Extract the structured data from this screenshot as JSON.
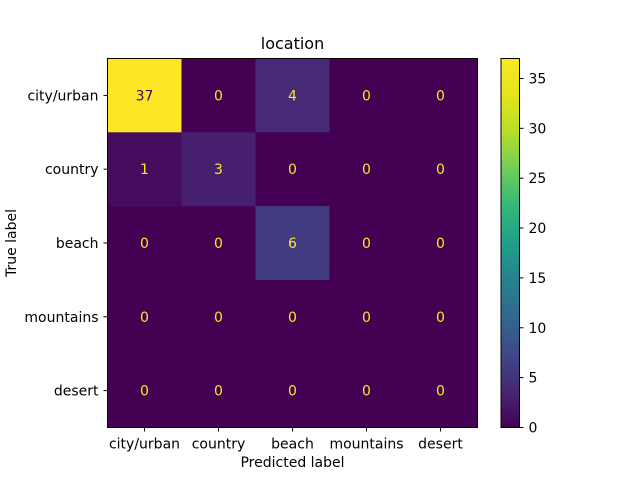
{
  "chart_data": {
    "type": "heatmap",
    "title": "location",
    "xlabel": "Predicted label",
    "ylabel": "True label",
    "x_categories": [
      "city/urban",
      "country",
      "beach",
      "mountains",
      "desert"
    ],
    "y_categories": [
      "city/urban",
      "country",
      "beach",
      "mountains",
      "desert"
    ],
    "matrix": [
      [
        37,
        0,
        4,
        0,
        0
      ],
      [
        1,
        3,
        0,
        0,
        0
      ],
      [
        0,
        0,
        6,
        0,
        0
      ],
      [
        0,
        0,
        0,
        0,
        0
      ],
      [
        0,
        0,
        0,
        0,
        0
      ]
    ],
    "colormap": "viridis",
    "value_range": [
      0,
      37
    ],
    "colorbar_ticks": [
      "0",
      "5",
      "10",
      "15",
      "20",
      "25",
      "30",
      "35"
    ],
    "grid": false,
    "colors": {
      "low": "#440154",
      "high": "#fde725",
      "text_on_dark": "#fde725",
      "text_on_light": "#440154"
    }
  }
}
